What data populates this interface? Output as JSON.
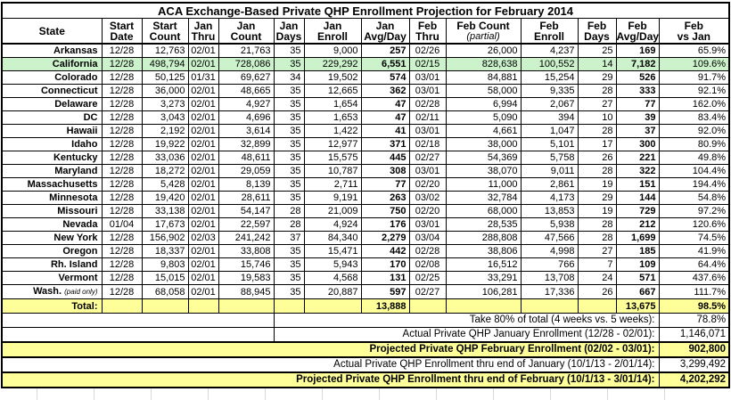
{
  "title": "ACA Exchange-Based Private QHP Enrollment Projection for February 2014",
  "colors": {
    "highlight_green": "#ccf2cc",
    "highlight_yellow": "#ffff99",
    "grid_line": "#000000",
    "empty_sheet_gridline": "#d9d9d9"
  },
  "columns": [
    {
      "id": "state",
      "line1": "State",
      "line2": ""
    },
    {
      "id": "start-date",
      "line1": "Start",
      "line2": "Date"
    },
    {
      "id": "start-count",
      "line1": "Start",
      "line2": "Count"
    },
    {
      "id": "jan-thru",
      "line1": "Jan",
      "line2": "Thru"
    },
    {
      "id": "jan-count",
      "line1": "Jan",
      "line2": "Count"
    },
    {
      "id": "jan-days",
      "line1": "Jan",
      "line2": "Days"
    },
    {
      "id": "jan-enroll",
      "line1": "Jan",
      "line2": "Enroll"
    },
    {
      "id": "jan-avg-day",
      "line1": "Jan",
      "line2": "Avg/Day"
    },
    {
      "id": "feb-thru",
      "line1": "Feb",
      "line2": "Thru"
    },
    {
      "id": "feb-count",
      "line1": "Feb Count",
      "line2": "(partial)",
      "line2_italic": true
    },
    {
      "id": "feb-enroll",
      "line1": "Feb",
      "line2": "Enroll"
    },
    {
      "id": "feb-days",
      "line1": "Feb",
      "line2": "Days"
    },
    {
      "id": "feb-avg-day",
      "line1": "Feb",
      "line2": "Avg/Day"
    },
    {
      "id": "feb-vs-jan",
      "line1": "Feb",
      "line2": "vs Jan"
    }
  ],
  "rows": [
    {
      "state": "Arkansas",
      "note": "",
      "highlight": false,
      "cells": [
        "12/28",
        "12,763",
        "02/01",
        "21,763",
        "35",
        "9,000",
        "257",
        "02/26",
        "26,000",
        "4,237",
        "25",
        "169",
        "65.9%"
      ]
    },
    {
      "state": "California",
      "note": "",
      "highlight": true,
      "cells": [
        "12/28",
        "498,794",
        "02/01",
        "728,086",
        "35",
        "229,292",
        "6,551",
        "02/15",
        "828,638",
        "100,552",
        "14",
        "7,182",
        "109.6%"
      ]
    },
    {
      "state": "Colorado",
      "note": "",
      "highlight": false,
      "cells": [
        "12/28",
        "50,125",
        "01/31",
        "69,627",
        "34",
        "19,502",
        "574",
        "03/01",
        "84,881",
        "15,254",
        "29",
        "526",
        "91.7%"
      ]
    },
    {
      "state": "Connecticut",
      "note": "",
      "highlight": false,
      "cells": [
        "12/28",
        "36,000",
        "02/01",
        "48,665",
        "35",
        "12,665",
        "362",
        "03/01",
        "58,000",
        "9,335",
        "28",
        "333",
        "92.1%"
      ]
    },
    {
      "state": "Delaware",
      "note": "",
      "highlight": false,
      "cells": [
        "12/28",
        "3,273",
        "02/01",
        "4,927",
        "35",
        "1,654",
        "47",
        "02/28",
        "6,994",
        "2,067",
        "27",
        "77",
        "162.0%"
      ]
    },
    {
      "state": "DC",
      "note": "",
      "highlight": false,
      "cells": [
        "12/28",
        "3,043",
        "02/01",
        "4,696",
        "35",
        "1,653",
        "47",
        "02/11",
        "5,090",
        "394",
        "10",
        "39",
        "83.4%"
      ]
    },
    {
      "state": "Hawaii",
      "note": "",
      "highlight": false,
      "cells": [
        "12/28",
        "2,192",
        "02/01",
        "3,614",
        "35",
        "1,422",
        "41",
        "03/01",
        "4,661",
        "1,047",
        "28",
        "37",
        "92.0%"
      ]
    },
    {
      "state": "Idaho",
      "note": "",
      "highlight": false,
      "cells": [
        "12/28",
        "19,922",
        "02/01",
        "32,899",
        "35",
        "12,977",
        "371",
        "02/18",
        "38,000",
        "5,101",
        "17",
        "300",
        "80.9%"
      ]
    },
    {
      "state": "Kentucky",
      "note": "",
      "highlight": false,
      "cells": [
        "12/28",
        "33,036",
        "02/01",
        "48,611",
        "35",
        "15,575",
        "445",
        "02/27",
        "54,369",
        "5,758",
        "26",
        "221",
        "49.8%"
      ]
    },
    {
      "state": "Maryland",
      "note": "",
      "highlight": false,
      "cells": [
        "12/28",
        "18,272",
        "02/01",
        "29,059",
        "35",
        "10,787",
        "308",
        "03/01",
        "38,070",
        "9,011",
        "28",
        "322",
        "104.4%"
      ]
    },
    {
      "state": "Massachusetts",
      "note": "",
      "highlight": false,
      "cells": [
        "12/28",
        "5,428",
        "02/01",
        "8,139",
        "35",
        "2,711",
        "77",
        "02/20",
        "11,000",
        "2,861",
        "19",
        "151",
        "194.4%"
      ]
    },
    {
      "state": "Minnesota",
      "note": "",
      "highlight": false,
      "cells": [
        "12/28",
        "19,420",
        "02/01",
        "28,611",
        "35",
        "9,191",
        "263",
        "03/02",
        "32,784",
        "4,173",
        "29",
        "144",
        "54.8%"
      ]
    },
    {
      "state": "Missouri",
      "note": "",
      "highlight": false,
      "cells": [
        "12/28",
        "33,138",
        "02/01",
        "54,147",
        "28",
        "21,009",
        "750",
        "02/20",
        "68,000",
        "13,853",
        "19",
        "729",
        "97.2%"
      ]
    },
    {
      "state": "Nevada",
      "note": "",
      "highlight": false,
      "cells": [
        "01/04",
        "17,673",
        "02/01",
        "22,597",
        "28",
        "4,924",
        "176",
        "03/01",
        "28,535",
        "5,938",
        "28",
        "212",
        "120.6%"
      ]
    },
    {
      "state": "New York",
      "note": "",
      "highlight": false,
      "cells": [
        "12/28",
        "156,902",
        "02/03",
        "241,242",
        "37",
        "84,340",
        "2,279",
        "03/04",
        "288,808",
        "47,566",
        "28",
        "1,699",
        "74.5%"
      ]
    },
    {
      "state": "Oregon",
      "note": "",
      "highlight": false,
      "cells": [
        "12/28",
        "18,337",
        "02/01",
        "33,808",
        "35",
        "15,471",
        "442",
        "02/28",
        "38,806",
        "4,998",
        "27",
        "185",
        "41.9%"
      ]
    },
    {
      "state": "Rh. Island",
      "note": "",
      "highlight": false,
      "cells": [
        "12/28",
        "9,803",
        "02/01",
        "15,746",
        "35",
        "5,943",
        "170",
        "02/08",
        "16,512",
        "766",
        "7",
        "109",
        "64.4%"
      ]
    },
    {
      "state": "Vermont",
      "note": "",
      "highlight": false,
      "cells": [
        "12/28",
        "15,015",
        "02/01",
        "19,583",
        "35",
        "4,568",
        "131",
        "02/25",
        "33,291",
        "13,708",
        "24",
        "571",
        "437.6%"
      ]
    },
    {
      "state": "Wash.",
      "note": "(paid only)",
      "highlight": false,
      "cells": [
        "12/28",
        "68,058",
        "02/01",
        "88,945",
        "35",
        "20,887",
        "597",
        "02/27",
        "106,281",
        "17,336",
        "26",
        "667",
        "111.7%"
      ]
    }
  ],
  "total_row": {
    "label": "Total:",
    "cells": [
      "",
      "",
      "",
      "",
      "",
      "",
      "13,888",
      "",
      "",
      "",
      "",
      "13,675",
      "98.5%"
    ]
  },
  "summary_rows": [
    {
      "label": "Take 80% of total (4 weeks vs. 5 weeks):",
      "value": "78.8%",
      "layout": "indent",
      "emphasis": false,
      "highlight": false
    },
    {
      "label": "Actual Private QHP January Enrollment (12/28 - 02/01):",
      "value": "1,146,071",
      "layout": "indent",
      "emphasis": false,
      "highlight": false
    },
    {
      "label": "Projected Private QHP February Enrollment (02/02 - 03/01):",
      "value": "902,800",
      "layout": "full",
      "emphasis": true,
      "highlight": true
    },
    {
      "label": "Actual Private QHP Enrollment thru end of January (10/1/13 - 2/01/14):",
      "value": "3,299,492",
      "layout": "full",
      "emphasis": false,
      "highlight": false
    },
    {
      "label": "Projected Private QHP Enrollment thru end of February (10/1/13 - 3/01/14):",
      "value": "4,202,292",
      "layout": "full",
      "emphasis": true,
      "highlight": true
    }
  ]
}
